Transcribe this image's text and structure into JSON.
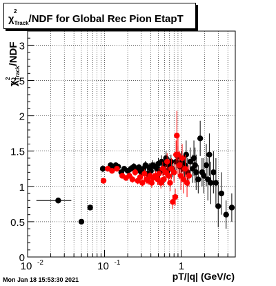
{
  "title": {
    "symbol": "χ",
    "sup": "2",
    "sub": "Track",
    "rest": "/NDF for Global Rec Pion EtapT"
  },
  "footer": "Mon Jan 18 15:53:30 2021",
  "chart_data": {
    "type": "scatter",
    "title": "χ²_Track/NDF for Global Rec Pion EtapT",
    "xlabel": "pT/|q| (GeV/c)",
    "ylabel": "χ²_Track/NDF",
    "xscale": "log",
    "xlim": [
      0.01,
      5
    ],
    "ylim": [
      0,
      3.2
    ],
    "xticks": [
      {
        "value": 0.01,
        "base": "10",
        "exp": "-2"
      },
      {
        "value": 0.1,
        "base": "10",
        "exp": "-1"
      },
      {
        "value": 1,
        "base": "1",
        "exp": ""
      }
    ],
    "yticks": [
      "0",
      "0.5",
      "1",
      "1.5",
      "2",
      "2.5",
      "3"
    ],
    "grid": true,
    "series": [
      {
        "color": "#000000",
        "points": [
          [
            0.025,
            0.8,
            0.04,
            0.012,
            0.012
          ],
          [
            0.05,
            0.5,
            0.03,
            0.003,
            0.003
          ],
          [
            0.065,
            0.7,
            0.03,
            0,
            0
          ],
          [
            0.095,
            1.25,
            0.05,
            0.005,
            0.005
          ],
          [
            0.12,
            1.3,
            0.04,
            0,
            0
          ],
          [
            0.13,
            1.25,
            0.04,
            0,
            0
          ],
          [
            0.14,
            1.3,
            0.04,
            0,
            0
          ],
          [
            0.15,
            1.28,
            0.04,
            0,
            0
          ],
          [
            0.165,
            1.2,
            0.04,
            0,
            0
          ],
          [
            0.18,
            1.25,
            0.04,
            0,
            0
          ],
          [
            0.2,
            1.22,
            0.04,
            0,
            0
          ],
          [
            0.22,
            1.25,
            0.05,
            0,
            0
          ],
          [
            0.24,
            1.28,
            0.05,
            0,
            0
          ],
          [
            0.26,
            1.22,
            0.05,
            0,
            0
          ],
          [
            0.28,
            1.27,
            0.05,
            0,
            0
          ],
          [
            0.3,
            1.2,
            0.05,
            0,
            0
          ],
          [
            0.32,
            1.25,
            0.06,
            0,
            0
          ],
          [
            0.34,
            1.3,
            0.06,
            0,
            0
          ],
          [
            0.36,
            1.18,
            0.06,
            0,
            0
          ],
          [
            0.38,
            1.27,
            0.06,
            0,
            0
          ],
          [
            0.4,
            1.22,
            0.07,
            0,
            0
          ],
          [
            0.42,
            1.3,
            0.07,
            0,
            0
          ],
          [
            0.45,
            1.28,
            0.07,
            0,
            0
          ],
          [
            0.48,
            1.25,
            0.08,
            0,
            0
          ],
          [
            0.5,
            1.32,
            0.08,
            0,
            0
          ],
          [
            0.52,
            1.2,
            0.08,
            0,
            0
          ],
          [
            0.55,
            1.35,
            0.09,
            0,
            0
          ],
          [
            0.58,
            1.25,
            0.09,
            0,
            0
          ],
          [
            0.6,
            1.3,
            0.1,
            0,
            0
          ],
          [
            0.63,
            1.4,
            0.1,
            0,
            0
          ],
          [
            0.66,
            1.22,
            0.1,
            0,
            0
          ],
          [
            0.7,
            1.3,
            0.1,
            0,
            0
          ],
          [
            0.73,
            1.35,
            0.1,
            0,
            0
          ],
          [
            0.76,
            1.25,
            0.12,
            0,
            0
          ],
          [
            0.8,
            1.2,
            0.12,
            0,
            0
          ],
          [
            0.85,
            1.35,
            0.12,
            0,
            0
          ],
          [
            0.9,
            1.42,
            0.15,
            0,
            0
          ],
          [
            0.95,
            1.28,
            0.15,
            0,
            0
          ],
          [
            1.0,
            1.35,
            0.15,
            0,
            0
          ],
          [
            1.05,
            1.25,
            0.15,
            0,
            0
          ],
          [
            1.1,
            1.3,
            0.18,
            0,
            0
          ],
          [
            1.15,
            1.45,
            0.2,
            0,
            0
          ],
          [
            1.2,
            1.2,
            0.2,
            0,
            0
          ],
          [
            1.3,
            1.35,
            0.2,
            0,
            0
          ],
          [
            1.4,
            1.25,
            0.2,
            0,
            0
          ],
          [
            1.45,
            1.4,
            0.25,
            0,
            0
          ],
          [
            1.5,
            1.3,
            0.25,
            0,
            0
          ],
          [
            1.55,
            1.2,
            0.25,
            0,
            0
          ],
          [
            1.65,
            1.1,
            0.2,
            0,
            0
          ],
          [
            1.75,
            1.68,
            0.25,
            0,
            0
          ],
          [
            1.85,
            1.2,
            0.2,
            0,
            0
          ],
          [
            1.95,
            1.15,
            0.25,
            0,
            0
          ],
          [
            2.1,
            1.3,
            0.3,
            0,
            0
          ],
          [
            2.2,
            1.1,
            0.3,
            0,
            0
          ],
          [
            2.3,
            1.45,
            0.3,
            0,
            0
          ],
          [
            2.4,
            1.05,
            0.3,
            0,
            0
          ],
          [
            2.6,
            1.2,
            0.3,
            0,
            0
          ],
          [
            2.8,
            1.05,
            0.35,
            0,
            0
          ],
          [
            3.0,
            0.72,
            0.3,
            0,
            0
          ],
          [
            3.3,
            0.9,
            0.3,
            0,
            0
          ],
          [
            3.8,
            0.6,
            0.2,
            0,
            0
          ],
          [
            4.5,
            0.7,
            0.2,
            0,
            0
          ]
        ]
      },
      {
        "color": "#ff0000",
        "points": [
          [
            0.097,
            1.08,
            0.04,
            0.003,
            0.003
          ],
          [
            0.11,
            1.25,
            0.04,
            0,
            0
          ],
          [
            0.125,
            1.22,
            0.04,
            0,
            0
          ],
          [
            0.145,
            1.25,
            0.04,
            0,
            0
          ],
          [
            0.17,
            1.15,
            0.04,
            0,
            0
          ],
          [
            0.19,
            1.12,
            0.04,
            0,
            0
          ],
          [
            0.21,
            1.15,
            0.04,
            0,
            0
          ],
          [
            0.23,
            1.1,
            0.05,
            0,
            0
          ],
          [
            0.25,
            1.2,
            0.05,
            0,
            0
          ],
          [
            0.27,
            1.08,
            0.05,
            0,
            0
          ],
          [
            0.29,
            1.13,
            0.05,
            0,
            0
          ],
          [
            0.31,
            1.05,
            0.05,
            0,
            0
          ],
          [
            0.33,
            1.18,
            0.06,
            0,
            0
          ],
          [
            0.35,
            1.1,
            0.06,
            0,
            0
          ],
          [
            0.37,
            1.08,
            0.06,
            0,
            0
          ],
          [
            0.39,
            1.15,
            0.06,
            0,
            0
          ],
          [
            0.41,
            1.05,
            0.07,
            0,
            0
          ],
          [
            0.43,
            1.12,
            0.07,
            0,
            0
          ],
          [
            0.46,
            1.15,
            0.07,
            0,
            0
          ],
          [
            0.49,
            1.1,
            0.08,
            0,
            0
          ],
          [
            0.51,
            1.18,
            0.08,
            0,
            0
          ],
          [
            0.54,
            1.05,
            0.08,
            0,
            0
          ],
          [
            0.57,
            1.25,
            0.1,
            0,
            0
          ],
          [
            0.59,
            1.1,
            0.1,
            0,
            0
          ],
          [
            0.62,
            1.2,
            0.1,
            0,
            0
          ],
          [
            0.65,
            1.35,
            0.12,
            0,
            0
          ],
          [
            0.68,
            1.15,
            0.12,
            0,
            0
          ],
          [
            0.71,
            1.05,
            0.12,
            0,
            0
          ],
          [
            0.74,
            1.25,
            0.15,
            0,
            0
          ],
          [
            0.77,
            0.78,
            0.1,
            0,
            0
          ],
          [
            0.8,
            1.2,
            0.15,
            0,
            0
          ],
          [
            0.83,
            0.85,
            0.12,
            0,
            0
          ],
          [
            0.85,
            1.45,
            0.2,
            0,
            0
          ],
          [
            0.87,
            1.72,
            0.35,
            0,
            0
          ],
          [
            0.9,
            1.45,
            0.3,
            0,
            0
          ],
          [
            0.94,
            1.3,
            0.2,
            0,
            0
          ],
          [
            0.98,
            1.15,
            0.2,
            0,
            0
          ],
          [
            1.02,
            1.4,
            0.2,
            0,
            0
          ],
          [
            1.06,
            1.1,
            0.2,
            0,
            0
          ],
          [
            1.12,
            1.25,
            0.2,
            0,
            0
          ],
          [
            1.18,
            1.05,
            0.2,
            0,
            0
          ],
          [
            1.25,
            1.15,
            0.15,
            0,
            0
          ]
        ]
      }
    ]
  }
}
